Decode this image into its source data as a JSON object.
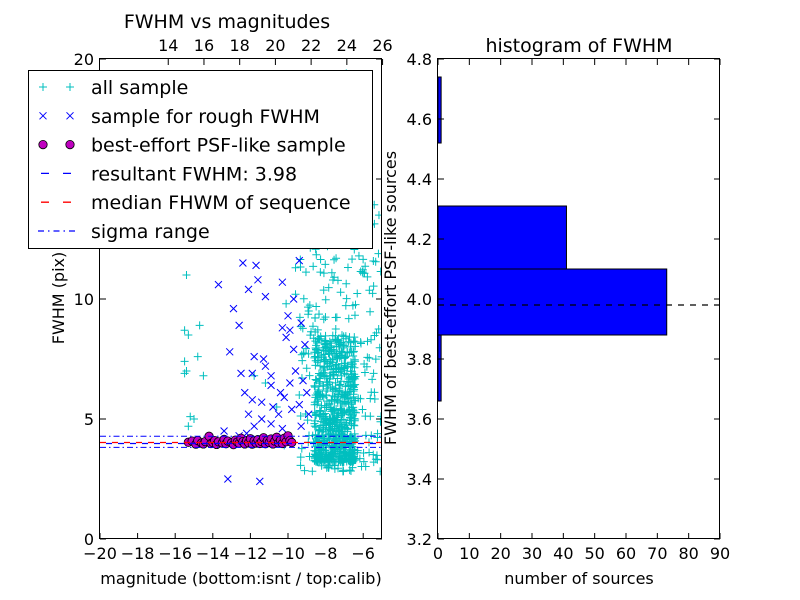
{
  "chart_data": [
    {
      "type": "scatter",
      "title": "FWHM vs magnitudes",
      "xlabel": "magnitude (bottom:isnt / top:calib)",
      "ylabel": "FWHM (pix)",
      "xlim": [
        -20,
        -5
      ],
      "ylim": [
        0,
        20
      ],
      "x_ticks": [
        "−20",
        "−18",
        "−16",
        "−14",
        "−12",
        "−10",
        "−8",
        "−6"
      ],
      "x_tick_values": [
        -20,
        -18,
        -16,
        -14,
        -12,
        -10,
        -8,
        -6
      ],
      "top_ticks": [
        "14",
        "16",
        "18",
        "20",
        "22",
        "24",
        "26"
      ],
      "top_tick_instrumental": [
        -16.37,
        -14.47,
        -12.57,
        -10.67,
        -8.77,
        -6.87,
        -4.97
      ],
      "y_ticks": [
        "0",
        "5",
        "10",
        "15",
        "20"
      ],
      "y_tick_values": [
        0,
        5,
        10,
        15,
        20
      ],
      "legend": {
        "position": "upper-left",
        "entries": [
          {
            "label": "all sample",
            "marker": "plus",
            "color": "#00bfbf"
          },
          {
            "label": "sample for rough FWHM",
            "marker": "x",
            "color": "#0000ff"
          },
          {
            "label": "best-effort PSF-like sample",
            "marker": "circle",
            "color": "#bf00bf"
          },
          {
            "label": "resultant FWHM: 3.98",
            "marker": "dashed",
            "color": "#0000ff"
          },
          {
            "label": "median FHWM of sequence",
            "marker": "dashed",
            "color": "#ff0000"
          },
          {
            "label": "sigma range",
            "marker": "dashdot",
            "color": "#0000ff"
          }
        ]
      },
      "resultant_fwhm": 3.98,
      "median_fwhm": 4.02,
      "sigma_range": [
        3.82,
        4.28
      ],
      "series": [
        {
          "name": "all sample",
          "color": "#00bfbf",
          "points": [
            [
              -15.4,
              11.0
            ],
            [
              -15.5,
              8.7
            ],
            [
              -15.3,
              8.5
            ],
            [
              -15.5,
              7.4
            ],
            [
              -15.4,
              7.0
            ],
            [
              -15.5,
              6.9
            ],
            [
              -15.2,
              5.1
            ],
            [
              -15.3,
              4.7
            ],
            [
              -14.7,
              8.9
            ],
            [
              -14.8,
              7.6
            ],
            [
              -14.5,
              6.8
            ],
            [
              -15.0,
              5.0
            ],
            [
              -11.8,
              6.8
            ],
            [
              -11.2,
              6.5
            ],
            [
              -10.6,
              5.5
            ],
            [
              -9.4,
              6.0
            ],
            [
              -10.2,
              3.9
            ],
            [
              -6.9,
              19.4
            ],
            [
              -6.4,
              19.0
            ],
            [
              -5.7,
              17.7
            ],
            [
              -6.1,
              16.9
            ],
            [
              -7.5,
              16.2
            ],
            [
              -6.8,
              15.5
            ],
            [
              -5.9,
              15.2
            ],
            [
              -9.3,
              14.6
            ],
            [
              -9.6,
              13.8
            ],
            [
              -10.7,
              13.9
            ],
            [
              -10.2,
              12.8
            ],
            [
              -8.6,
              12.6
            ],
            [
              -7.9,
              12.2
            ],
            [
              -6.3,
              12.4
            ],
            [
              -9.6,
              11.3
            ],
            [
              -9.6,
              10.2
            ],
            [
              -10.1,
              9.8
            ]
          ]
        },
        {
          "name": "sample for rough FWHM",
          "color": "#0000ff",
          "points": [
            [
              -13.2,
              2.5
            ],
            [
              -11.5,
              2.4
            ],
            [
              -13.7,
              10.6
            ],
            [
              -12.4,
              11.5
            ],
            [
              -11.7,
              11.4
            ],
            [
              -11.0,
              12.3
            ],
            [
              -10.4,
              12.8
            ],
            [
              -11.6,
              10.8
            ],
            [
              -12.1,
              10.4
            ],
            [
              -11.2,
              10.1
            ],
            [
              -12.9,
              9.6
            ],
            [
              -12.6,
              8.9
            ],
            [
              -13.1,
              7.8
            ],
            [
              -12.5,
              6.9
            ],
            [
              -11.8,
              7.6
            ],
            [
              -11.2,
              7.2
            ],
            [
              -11.3,
              7.5
            ],
            [
              -11.9,
              6.9
            ],
            [
              -10.9,
              6.8
            ],
            [
              -10.9,
              6.4
            ],
            [
              -12.3,
              6.1
            ],
            [
              -11.9,
              5.8
            ],
            [
              -11.4,
              5.7
            ],
            [
              -12.1,
              5.2
            ],
            [
              -11.4,
              5.0
            ],
            [
              -11.8,
              4.7
            ],
            [
              -10.9,
              4.8
            ],
            [
              -10.3,
              4.6
            ],
            [
              -10.1,
              8.4
            ],
            [
              -10.3,
              8.8
            ],
            [
              -10.0,
              9.3
            ],
            [
              -9.7,
              10.0
            ],
            [
              -10.3,
              10.7
            ],
            [
              -10.0,
              12.3
            ],
            [
              -9.4,
              11.6
            ],
            [
              -10.5,
              5.2
            ],
            [
              -10.8,
              5.5
            ],
            [
              -10.2,
              5.9
            ],
            [
              -9.8,
              5.4
            ],
            [
              -10.4,
              6.1
            ],
            [
              -9.9,
              6.5
            ],
            [
              -9.6,
              7.0
            ],
            [
              -9.7,
              7.9
            ],
            [
              -9.9,
              8.7
            ],
            [
              -9.1,
              8.1
            ],
            [
              -9.3,
              9.0
            ],
            [
              -9.0,
              6.1
            ],
            [
              -9.2,
              6.6
            ],
            [
              -9.4,
              5.6
            ],
            [
              -8.9,
              5.2
            ],
            [
              -9.3,
              4.7
            ],
            [
              -12.6,
              4.3
            ],
            [
              -12.2,
              4.4
            ],
            [
              -13.4,
              4.5
            ]
          ]
        },
        {
          "name": "best-effort PSF-like sample",
          "color": "#bf00bf",
          "points": [
            [
              -15.3,
              4.03
            ],
            [
              -15.1,
              4.08
            ],
            [
              -14.9,
              3.95
            ],
            [
              -14.8,
              4.1
            ],
            [
              -14.6,
              4.0
            ],
            [
              -14.5,
              3.96
            ],
            [
              -14.4,
              4.06
            ],
            [
              -14.2,
              4.28
            ],
            [
              -14.1,
              3.98
            ],
            [
              -14.0,
              4.02
            ],
            [
              -13.9,
              4.1
            ],
            [
              -13.8,
              3.94
            ],
            [
              -13.7,
              4.05
            ],
            [
              -13.5,
              4.0
            ],
            [
              -13.4,
              4.15
            ],
            [
              -13.3,
              3.97
            ],
            [
              -13.2,
              4.08
            ],
            [
              -13.0,
              4.01
            ],
            [
              -12.9,
              3.93
            ],
            [
              -12.8,
              4.12
            ],
            [
              -12.7,
              4.04
            ],
            [
              -12.6,
              3.99
            ],
            [
              -12.5,
              4.2
            ],
            [
              -12.4,
              4.06
            ],
            [
              -12.3,
              3.96
            ],
            [
              -12.2,
              4.1
            ],
            [
              -12.1,
              4.01
            ],
            [
              -12.0,
              4.18
            ],
            [
              -11.9,
              3.95
            ],
            [
              -11.8,
              4.09
            ],
            [
              -11.7,
              4.0
            ],
            [
              -11.6,
              4.14
            ],
            [
              -11.5,
              3.98
            ],
            [
              -11.4,
              4.06
            ],
            [
              -11.3,
              4.22
            ],
            [
              -11.2,
              3.97
            ],
            [
              -11.1,
              4.1
            ],
            [
              -11.0,
              4.02
            ],
            [
              -10.9,
              4.17
            ],
            [
              -10.8,
              3.96
            ],
            [
              -10.7,
              4.08
            ],
            [
              -10.6,
              4.24
            ],
            [
              -10.5,
              4.0
            ],
            [
              -10.4,
              4.12
            ],
            [
              -10.3,
              3.98
            ],
            [
              -10.2,
              4.2
            ],
            [
              -10.1,
              4.05
            ],
            [
              -10.0,
              4.3
            ],
            [
              -9.9,
              4.1
            ],
            [
              -9.8,
              4.02
            ]
          ]
        }
      ],
      "dense_band": {
        "series": "all sample",
        "x_range": [
          -9.4,
          -5.0
        ],
        "y_range": [
          2.8,
          14.0
        ],
        "concentration_x": [
          -8.6,
          -6.4
        ],
        "concentration_y": [
          3.2,
          8.5
        ]
      }
    },
    {
      "type": "bar",
      "orientation": "horizontal",
      "title": "histogram of FWHM",
      "xlabel": "number of sources",
      "ylabel": "FWHM of best-effort PSF-like sources",
      "xlim": [
        0,
        90
      ],
      "ylim": [
        3.2,
        4.8
      ],
      "x_ticks": [
        "0",
        "10",
        "20",
        "30",
        "40",
        "50",
        "60",
        "70",
        "80",
        "90"
      ],
      "x_tick_values": [
        0,
        10,
        20,
        30,
        40,
        50,
        60,
        70,
        80,
        90
      ],
      "y_ticks": [
        "3.2",
        "3.4",
        "3.6",
        "3.8",
        "4.0",
        "4.2",
        "4.4",
        "4.6",
        "4.8"
      ],
      "y_tick_values": [
        3.2,
        3.4,
        3.6,
        3.8,
        4.0,
        4.2,
        4.4,
        4.6,
        4.8
      ],
      "bar_color": "#0000ff",
      "bins": [
        {
          "low": 3.66,
          "high": 3.88,
          "count": 1
        },
        {
          "low": 3.88,
          "high": 4.1,
          "count": 73
        },
        {
          "low": 4.1,
          "high": 4.31,
          "count": 41
        },
        {
          "low": 4.52,
          "high": 4.74,
          "count": 1
        }
      ],
      "reference_line": 3.98
    }
  ]
}
